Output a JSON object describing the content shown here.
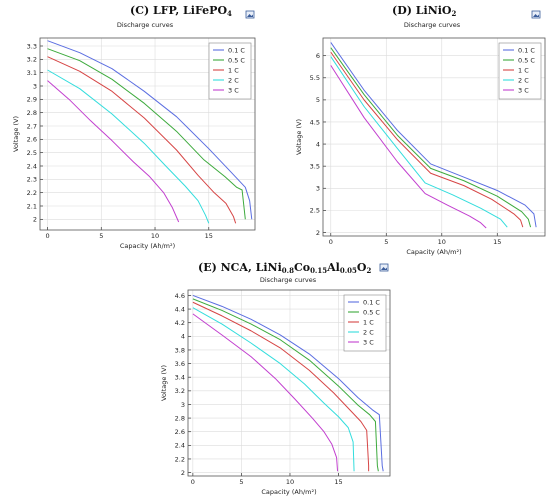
{
  "titles": {
    "C": {
      "prefix": "(C) LFP, LiFePO",
      "sub": "4"
    },
    "D": {
      "prefix": "(D) LiNiO",
      "sub": "2"
    },
    "E": {
      "parts": [
        "(E) NCA, LiNi",
        "0.8",
        "Co",
        "0.15",
        "Al",
        "0.05",
        "O",
        "2"
      ]
    }
  },
  "chart_data": [
    {
      "id": "C",
      "type": "line",
      "title": "Discharge curves",
      "xlabel": "Capacity (Ah/m²)",
      "ylabel": "Voltage (V)",
      "xlim": [
        -0.7,
        19.3
      ],
      "ylim": [
        1.92,
        3.36
      ],
      "xticks": [
        0,
        5,
        10,
        15
      ],
      "yticks": [
        2,
        2.1,
        2.2,
        2.3,
        2.4,
        2.5,
        2.6,
        2.7,
        2.8,
        2.9,
        3,
        3.1,
        3.2,
        3.3
      ],
      "legend_position": "top-right",
      "series": [
        {
          "name": "0.1 C",
          "color": "#5b6ee1",
          "points": [
            [
              0,
              3.34
            ],
            [
              3,
              3.25
            ],
            [
              6,
              3.13
            ],
            [
              9,
              2.96
            ],
            [
              12,
              2.77
            ],
            [
              15,
              2.53
            ],
            [
              17,
              2.36
            ],
            [
              18.4,
              2.24
            ],
            [
              18.8,
              2.14
            ],
            [
              19,
              2.0
            ]
          ]
        },
        {
          "name": "0.5 C",
          "color": "#3daa3d",
          "points": [
            [
              0,
              3.28
            ],
            [
              3,
              3.19
            ],
            [
              6,
              3.05
            ],
            [
              9,
              2.87
            ],
            [
              12,
              2.66
            ],
            [
              14.5,
              2.45
            ],
            [
              16.5,
              2.32
            ],
            [
              17.6,
              2.24
            ],
            [
              18.1,
              2.22
            ],
            [
              18.4,
              2.0
            ]
          ]
        },
        {
          "name": "1 C",
          "color": "#d64545",
          "points": [
            [
              0,
              3.22
            ],
            [
              3,
              3.11
            ],
            [
              6,
              2.96
            ],
            [
              9,
              2.76
            ],
            [
              12,
              2.52
            ],
            [
              14,
              2.33
            ],
            [
              15.5,
              2.2
            ],
            [
              16.6,
              2.12
            ],
            [
              17.3,
              2.02
            ],
            [
              17.5,
              1.97
            ]
          ]
        },
        {
          "name": "2 C",
          "color": "#33dddd",
          "points": [
            [
              0,
              3.12
            ],
            [
              3,
              2.98
            ],
            [
              6,
              2.79
            ],
            [
              9,
              2.57
            ],
            [
              11,
              2.4
            ],
            [
              12.8,
              2.25
            ],
            [
              14,
              2.14
            ],
            [
              14.7,
              2.03
            ],
            [
              15,
              1.97
            ]
          ]
        },
        {
          "name": "3 C",
          "color": "#c23fcf",
          "points": [
            [
              0,
              3.04
            ],
            [
              2,
              2.9
            ],
            [
              4,
              2.74
            ],
            [
              6,
              2.59
            ],
            [
              8,
              2.43
            ],
            [
              9.5,
              2.32
            ],
            [
              10.8,
              2.2
            ],
            [
              11.6,
              2.09
            ],
            [
              12.2,
              1.98
            ]
          ]
        }
      ]
    },
    {
      "id": "D",
      "type": "line",
      "title": "Discharge curves",
      "xlabel": "Capacity (Ah/m²)",
      "ylabel": "Voltage (V)",
      "xlim": [
        -0.7,
        19.3
      ],
      "ylim": [
        1.92,
        6.4
      ],
      "xticks": [
        0,
        5,
        10,
        15
      ],
      "yticks": [
        2,
        2.5,
        3,
        3.5,
        4,
        4.5,
        5,
        5.5,
        6
      ],
      "legend_position": "top-right",
      "series": [
        {
          "name": "0.1 C",
          "color": "#5b6ee1",
          "points": [
            [
              0,
              6.3
            ],
            [
              3,
              5.22
            ],
            [
              6,
              4.31
            ],
            [
              9,
              3.55
            ],
            [
              12,
              3.25
            ],
            [
              15,
              2.95
            ],
            [
              17.5,
              2.62
            ],
            [
              18.3,
              2.42
            ],
            [
              18.5,
              2.12
            ]
          ]
        },
        {
          "name": "0.5 C",
          "color": "#3daa3d",
          "points": [
            [
              0,
              6.18
            ],
            [
              3,
              5.12
            ],
            [
              6,
              4.2
            ],
            [
              9,
              3.45
            ],
            [
              12,
              3.17
            ],
            [
              15,
              2.82
            ],
            [
              17.2,
              2.47
            ],
            [
              17.8,
              2.3
            ],
            [
              18,
              2.12
            ]
          ]
        },
        {
          "name": "1 C",
          "color": "#d64545",
          "points": [
            [
              0,
              6.08
            ],
            [
              3,
              5.0
            ],
            [
              6,
              4.1
            ],
            [
              9,
              3.34
            ],
            [
              12,
              3.06
            ],
            [
              14.5,
              2.75
            ],
            [
              16.5,
              2.42
            ],
            [
              17.1,
              2.28
            ],
            [
              17.3,
              2.12
            ]
          ]
        },
        {
          "name": "2 C",
          "color": "#33dddd",
          "points": [
            [
              0,
              5.98
            ],
            [
              3,
              4.85
            ],
            [
              6,
              3.9
            ],
            [
              8.5,
              3.12
            ],
            [
              11,
              2.85
            ],
            [
              13.5,
              2.55
            ],
            [
              15.3,
              2.3
            ],
            [
              15.9,
              2.12
            ]
          ]
        },
        {
          "name": "3 C",
          "color": "#c23fcf",
          "points": [
            [
              0,
              5.78
            ],
            [
              3,
              4.6
            ],
            [
              6,
              3.6
            ],
            [
              8.5,
              2.88
            ],
            [
              10.5,
              2.62
            ],
            [
              12.5,
              2.37
            ],
            [
              13.5,
              2.22
            ],
            [
              14,
              2.1
            ]
          ]
        }
      ]
    },
    {
      "id": "E",
      "type": "line",
      "title": "Discharge curves",
      "xlabel": "Capacity (Ah/m²)",
      "ylabel": "Voltage (V)",
      "xlim": [
        -0.5,
        20.3
      ],
      "ylim": [
        1.95,
        4.68
      ],
      "xticks": [
        0,
        5,
        10,
        15
      ],
      "yticks": [
        2,
        2.2,
        2.4,
        2.6,
        2.8,
        3,
        3.2,
        3.4,
        3.6,
        3.8,
        4,
        4.2,
        4.4,
        4.6
      ],
      "legend_position": "top-right",
      "series": [
        {
          "name": "0.1 C",
          "color": "#5b6ee1",
          "points": [
            [
              0,
              4.6
            ],
            [
              3,
              4.44
            ],
            [
              6,
              4.25
            ],
            [
              9,
              4.02
            ],
            [
              12,
              3.74
            ],
            [
              15,
              3.38
            ],
            [
              17,
              3.1
            ],
            [
              18.5,
              2.92
            ],
            [
              19.2,
              2.85
            ],
            [
              19.5,
              2.1
            ],
            [
              19.6,
              2.02
            ]
          ]
        },
        {
          "name": "0.5 C",
          "color": "#3daa3d",
          "points": [
            [
              0,
              4.55
            ],
            [
              3,
              4.38
            ],
            [
              6,
              4.18
            ],
            [
              9,
              3.95
            ],
            [
              12,
              3.65
            ],
            [
              15,
              3.27
            ],
            [
              17,
              2.99
            ],
            [
              18.2,
              2.85
            ],
            [
              18.8,
              2.75
            ],
            [
              19,
              2.1
            ],
            [
              19.1,
              2.02
            ]
          ]
        },
        {
          "name": "1 C",
          "color": "#d64545",
          "points": [
            [
              0,
              4.5
            ],
            [
              3,
              4.3
            ],
            [
              6,
              4.08
            ],
            [
              9,
              3.83
            ],
            [
              12,
              3.5
            ],
            [
              14.5,
              3.17
            ],
            [
              16.3,
              2.9
            ],
            [
              17.3,
              2.75
            ],
            [
              17.9,
              2.62
            ],
            [
              18.1,
              2.1
            ],
            [
              18.1,
              2.02
            ]
          ]
        },
        {
          "name": "2 C",
          "color": "#33dddd",
          "points": [
            [
              0,
              4.42
            ],
            [
              3,
              4.18
            ],
            [
              6,
              3.9
            ],
            [
              9,
              3.6
            ],
            [
              11.5,
              3.3
            ],
            [
              13.5,
              3.02
            ],
            [
              15,
              2.82
            ],
            [
              16,
              2.66
            ],
            [
              16.5,
              2.45
            ],
            [
              16.6,
              2.02
            ]
          ]
        },
        {
          "name": "3 C",
          "color": "#c23fcf",
          "points": [
            [
              0,
              4.33
            ],
            [
              3,
              4.02
            ],
            [
              6,
              3.7
            ],
            [
              8.5,
              3.38
            ],
            [
              10.5,
              3.08
            ],
            [
              12.3,
              2.8
            ],
            [
              13.5,
              2.6
            ],
            [
              14.3,
              2.42
            ],
            [
              14.8,
              2.22
            ],
            [
              14.9,
              2.02
            ]
          ]
        }
      ]
    }
  ]
}
